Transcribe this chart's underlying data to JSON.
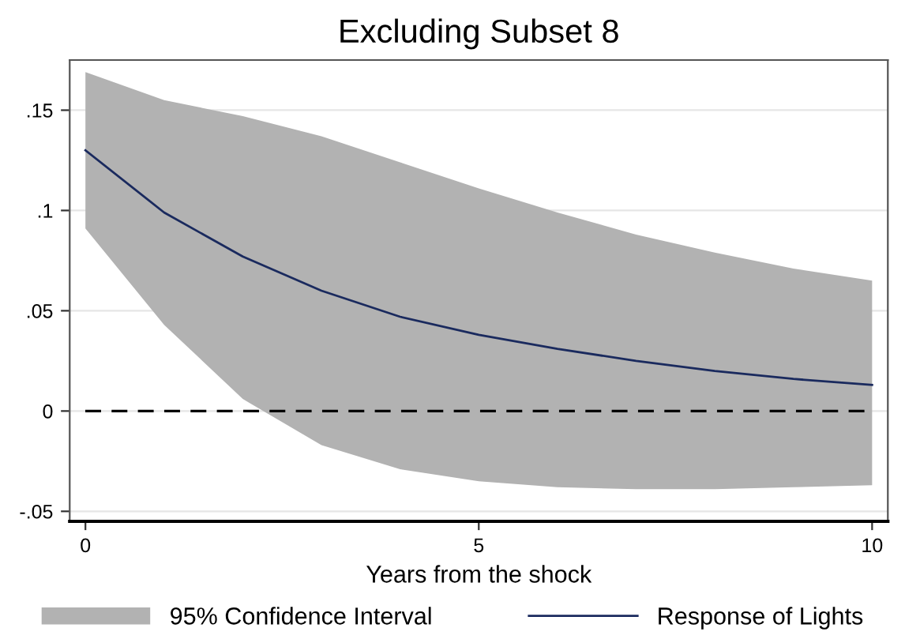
{
  "chart_data": {
    "type": "line",
    "title": "Excluding Subset 8",
    "xlabel": "Years from the shock",
    "x": [
      0,
      1,
      2,
      3,
      4,
      5,
      6,
      7,
      8,
      9,
      10
    ],
    "series": [
      {
        "name": "Response of Lights",
        "color": "#1a2a5e",
        "values": [
          0.13,
          0.099,
          0.077,
          0.06,
          0.047,
          0.038,
          0.031,
          0.025,
          0.02,
          0.016,
          0.013
        ],
        "lower": [
          0.091,
          0.043,
          0.006,
          -0.017,
          -0.029,
          -0.035,
          -0.038,
          -0.039,
          -0.039,
          -0.038,
          -0.037
        ],
        "upper": [
          0.169,
          0.155,
          0.147,
          0.137,
          0.124,
          0.111,
          0.099,
          0.088,
          0.079,
          0.071,
          0.065
        ]
      }
    ],
    "annotations": [
      "95% Confidence Interval"
    ],
    "ref_lines": [
      {
        "axis": "y",
        "value": 0,
        "color": "#000000",
        "line_style": "dashed"
      }
    ],
    "xlim": [
      -0.2,
      10.2
    ],
    "xticks": [
      0,
      5,
      10
    ],
    "ylim": [
      -0.055,
      0.175
    ],
    "yticks": [
      {
        "value": -0.05,
        "label": "-.05"
      },
      0,
      {
        "value": 0.05,
        "label": ".05"
      },
      {
        "value": 0.1,
        "label": ".1"
      },
      {
        "value": 0.15,
        "label": ".15"
      }
    ],
    "grid": "y",
    "legend": "bottom",
    "line_style": "solid",
    "marker": "none"
  }
}
